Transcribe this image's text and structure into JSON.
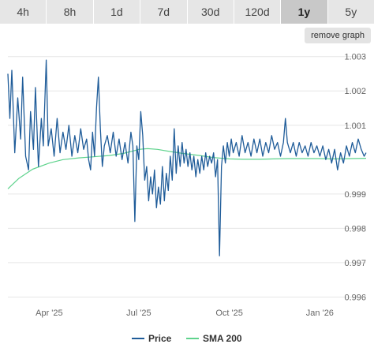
{
  "tabs": [
    {
      "label": "4h",
      "active": false
    },
    {
      "label": "8h",
      "active": false
    },
    {
      "label": "1d",
      "active": false
    },
    {
      "label": "7d",
      "active": false
    },
    {
      "label": "30d",
      "active": false
    },
    {
      "label": "120d",
      "active": false
    },
    {
      "label": "1y",
      "active": true
    },
    {
      "label": "5y",
      "active": false
    }
  ],
  "remove_graph_label": "remove graph",
  "colors": {
    "price": "#1f5c99",
    "sma": "#5fd38d",
    "grid": "#e6e6e6",
    "axis_text": "#666666"
  },
  "chart_data": {
    "type": "line",
    "title": "",
    "xlabel": "",
    "ylabel": "",
    "x_tick_labels": [
      "Apr '25",
      "Jul '25",
      "Oct '25",
      "Jan '26"
    ],
    "x_ticks": [
      "2025-04-01",
      "2025-07-01",
      "2025-10-01",
      "2026-01-01"
    ],
    "xlim": [
      "2025-02-18",
      "2026-02-17"
    ],
    "y_tick_labels": [
      "0.996",
      "0.997",
      "0.998",
      "0.999",
      "1.001",
      "1.002",
      "1.003"
    ],
    "ylim": [
      0.99585,
      1.0032
    ],
    "grid": true,
    "legend_position": "bottom-center",
    "series": [
      {
        "name": "Price",
        "color": "#1f5c99",
        "points": [
          [
            "2025-02-18",
            1.0025
          ],
          [
            "2025-02-20",
            1.0012
          ],
          [
            "2025-02-22",
            1.0026
          ],
          [
            "2025-02-25",
            1.0002
          ],
          [
            "2025-02-28",
            1.0018
          ],
          [
            "2025-03-03",
            1.0006
          ],
          [
            "2025-03-05",
            1.0024
          ],
          [
            "2025-03-08",
            1.0001
          ],
          [
            "2025-03-11",
            0.9997
          ],
          [
            "2025-03-13",
            1.0014
          ],
          [
            "2025-03-16",
            1.0003
          ],
          [
            "2025-03-18",
            1.0021
          ],
          [
            "2025-03-21",
            0.9998
          ],
          [
            "2025-03-24",
            1.0012
          ],
          [
            "2025-03-26",
            1.0004
          ],
          [
            "2025-03-29",
            1.0029
          ],
          [
            "2025-03-31",
            1.0004
          ],
          [
            "2025-04-03",
            1.0009
          ],
          [
            "2025-04-06",
            1.0001
          ],
          [
            "2025-04-09",
            1.0012
          ],
          [
            "2025-04-12",
            1.0002
          ],
          [
            "2025-04-15",
            1.0008
          ],
          [
            "2025-04-18",
            1.0003
          ],
          [
            "2025-04-21",
            1.001
          ],
          [
            "2025-04-24",
            1.0001
          ],
          [
            "2025-04-27",
            1.0007
          ],
          [
            "2025-04-30",
            1.0002
          ],
          [
            "2025-05-03",
            1.0009
          ],
          [
            "2025-05-06",
            1.0003
          ],
          [
            "2025-05-09",
            1.0006
          ],
          [
            "2025-05-11",
            1.0
          ],
          [
            "2025-05-13",
            0.9997
          ],
          [
            "2025-05-15",
            1.0008
          ],
          [
            "2025-05-17",
            1.0001
          ],
          [
            "2025-05-19",
            1.0015
          ],
          [
            "2025-05-21",
            1.0024
          ],
          [
            "2025-05-23",
            1.0009
          ],
          [
            "2025-05-25",
            0.9998
          ],
          [
            "2025-05-27",
            1.0004
          ],
          [
            "2025-05-30",
            1.0007
          ],
          [
            "2025-06-02",
            1.0002
          ],
          [
            "2025-06-05",
            1.0008
          ],
          [
            "2025-06-08",
            1.0001
          ],
          [
            "2025-06-11",
            1.0006
          ],
          [
            "2025-06-14",
            1.0
          ],
          [
            "2025-06-17",
            1.0005
          ],
          [
            "2025-06-20",
            0.9999
          ],
          [
            "2025-06-23",
            1.0008
          ],
          [
            "2025-06-25",
            1.0004
          ],
          [
            "2025-06-27",
            0.9982
          ],
          [
            "2025-06-29",
            1.0004
          ],
          [
            "2025-07-01",
            1.0
          ],
          [
            "2025-07-03",
            1.0014
          ],
          [
            "2025-07-05",
            1.0007
          ],
          [
            "2025-07-07",
            0.9994
          ],
          [
            "2025-07-09",
            0.9998
          ],
          [
            "2025-07-11",
            0.9988
          ],
          [
            "2025-07-13",
            0.9995
          ],
          [
            "2025-07-15",
            0.999
          ],
          [
            "2025-07-17",
            0.9997
          ],
          [
            "2025-07-19",
            0.9986
          ],
          [
            "2025-07-21",
            0.9992
          ],
          [
            "2025-07-23",
            0.9987
          ],
          [
            "2025-07-25",
            0.9998
          ],
          [
            "2025-07-27",
            0.9988
          ],
          [
            "2025-07-29",
            0.9996
          ],
          [
            "2025-07-31",
            0.9991
          ],
          [
            "2025-08-02",
            1.0001
          ],
          [
            "2025-08-04",
            0.9994
          ],
          [
            "2025-08-06",
            1.0009
          ],
          [
            "2025-08-08",
            0.9996
          ],
          [
            "2025-08-10",
            1.0004
          ],
          [
            "2025-08-12",
            0.9998
          ],
          [
            "2025-08-14",
            1.0005
          ],
          [
            "2025-08-16",
            0.9999
          ],
          [
            "2025-08-18",
            1.0003
          ],
          [
            "2025-08-20",
            0.9998
          ],
          [
            "2025-08-22",
            1.0002
          ],
          [
            "2025-08-24",
            0.9997
          ],
          [
            "2025-08-26",
            1.0001
          ],
          [
            "2025-08-28",
            0.9995
          ],
          [
            "2025-08-30",
            1.0
          ],
          [
            "2025-09-01",
            0.9996
          ],
          [
            "2025-09-03",
            1.0001
          ],
          [
            "2025-09-05",
            0.9997
          ],
          [
            "2025-09-07",
            1.0002
          ],
          [
            "2025-09-09",
            0.9998
          ],
          [
            "2025-09-11",
            1.0001
          ],
          [
            "2025-09-13",
            0.9999
          ],
          [
            "2025-09-15",
            1.0002
          ],
          [
            "2025-09-17",
            0.9995
          ],
          [
            "2025-09-19",
            1.0
          ],
          [
            "2025-09-21",
            0.9972
          ],
          [
            "2025-09-23",
            0.9998
          ],
          [
            "2025-09-25",
            1.0004
          ],
          [
            "2025-09-27",
            0.9999
          ],
          [
            "2025-09-29",
            1.0005
          ],
          [
            "2025-10-01",
            1.0001
          ],
          [
            "2025-10-03",
            1.0006
          ],
          [
            "2025-10-05",
            1.0002
          ],
          [
            "2025-10-08",
            1.0005
          ],
          [
            "2025-10-11",
            1.0001
          ],
          [
            "2025-10-14",
            1.0007
          ],
          [
            "2025-10-17",
            1.0002
          ],
          [
            "2025-10-20",
            1.0005
          ],
          [
            "2025-10-23",
            1.0001
          ],
          [
            "2025-10-26",
            1.0006
          ],
          [
            "2025-10-29",
            1.0002
          ],
          [
            "2025-11-01",
            1.0006
          ],
          [
            "2025-11-04",
            1.0001
          ],
          [
            "2025-11-07",
            1.0005
          ],
          [
            "2025-11-10",
            1.0002
          ],
          [
            "2025-11-13",
            1.0007
          ],
          [
            "2025-11-16",
            1.0003
          ],
          [
            "2025-11-19",
            1.0005
          ],
          [
            "2025-11-22",
            1.0001
          ],
          [
            "2025-11-25",
            1.0005
          ],
          [
            "2025-11-27",
            1.0012
          ],
          [
            "2025-11-29",
            1.0005
          ],
          [
            "2025-12-02",
            1.0002
          ],
          [
            "2025-12-05",
            1.0005
          ],
          [
            "2025-12-08",
            1.0001
          ],
          [
            "2025-12-11",
            1.0005
          ],
          [
            "2025-12-14",
            1.0002
          ],
          [
            "2025-12-17",
            1.0004
          ],
          [
            "2025-12-20",
            1.0001
          ],
          [
            "2025-12-23",
            1.0005
          ],
          [
            "2025-12-26",
            1.0002
          ],
          [
            "2025-12-29",
            1.0004
          ],
          [
            "2026-01-01",
            1.0001
          ],
          [
            "2026-01-04",
            1.0004
          ],
          [
            "2026-01-07",
            1.0
          ],
          [
            "2026-01-10",
            1.0003
          ],
          [
            "2026-01-13",
            0.9999
          ],
          [
            "2026-01-16",
            1.0003
          ],
          [
            "2026-01-19",
            0.9997
          ],
          [
            "2026-01-22",
            1.0002
          ],
          [
            "2026-01-25",
            0.9999
          ],
          [
            "2026-01-28",
            1.0004
          ],
          [
            "2026-01-31",
            1.0001
          ],
          [
            "2026-02-03",
            1.0005
          ],
          [
            "2026-02-06",
            1.0002
          ],
          [
            "2026-02-09",
            1.0006
          ],
          [
            "2026-02-12",
            1.0003
          ],
          [
            "2026-02-15",
            1.0001
          ],
          [
            "2026-02-17",
            1.0002
          ]
        ]
      },
      {
        "name": "SMA 200",
        "color": "#5fd38d",
        "points": [
          [
            "2025-02-18",
            0.99915
          ],
          [
            "2025-03-01",
            0.99945
          ],
          [
            "2025-03-15",
            0.99972
          ],
          [
            "2025-04-01",
            0.9999
          ],
          [
            "2025-04-15",
            1.0
          ],
          [
            "2025-05-01",
            1.00005
          ],
          [
            "2025-05-15",
            1.00008
          ],
          [
            "2025-06-01",
            1.00012
          ],
          [
            "2025-06-15",
            1.00018
          ],
          [
            "2025-06-25",
            1.00025
          ],
          [
            "2025-07-01",
            1.0003
          ],
          [
            "2025-07-10",
            1.00032
          ],
          [
            "2025-07-20",
            1.0003
          ],
          [
            "2025-08-01",
            1.00024
          ],
          [
            "2025-08-15",
            1.00018
          ],
          [
            "2025-09-01",
            1.00012
          ],
          [
            "2025-09-15",
            1.00006
          ],
          [
            "2025-10-01",
            1.00002
          ],
          [
            "2025-10-15",
            1.00001
          ],
          [
            "2025-11-01",
            1.00001
          ],
          [
            "2025-11-15",
            1.00002
          ],
          [
            "2025-12-01",
            1.00003
          ],
          [
            "2025-12-15",
            1.00003
          ],
          [
            "2026-01-01",
            1.00003
          ],
          [
            "2026-01-15",
            1.00002
          ],
          [
            "2026-02-01",
            1.00003
          ],
          [
            "2026-02-17",
            1.00004
          ]
        ]
      }
    ]
  }
}
